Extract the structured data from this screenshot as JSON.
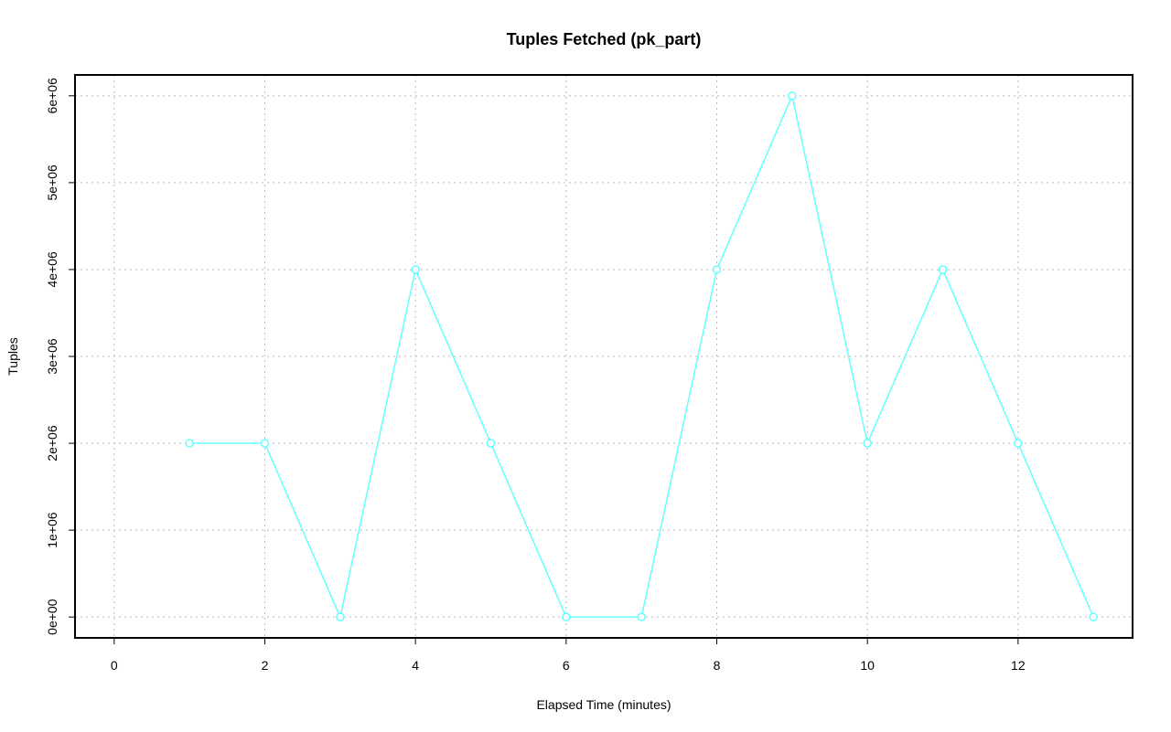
{
  "chart_data": {
    "type": "line",
    "title": "Tuples Fetched (pk_part)",
    "x_label": "Elapsed Time (minutes)",
    "y_label": "Tuples",
    "x": [
      1,
      2,
      3,
      4,
      5,
      6,
      7,
      8,
      9,
      10,
      11,
      12,
      13
    ],
    "series": [
      {
        "name": "pk_part",
        "color": "#66ffff",
        "values": [
          2000000,
          2000000,
          0,
          4000000,
          2000000,
          0,
          0,
          4000000,
          6000000,
          2000000,
          4000000,
          2000000,
          0
        ]
      }
    ],
    "xlim": [
      -0.52,
      13.52
    ],
    "xticks": [
      0,
      2,
      4,
      6,
      8,
      10,
      12
    ],
    "ylim": [
      -240000,
      6240000
    ],
    "yticks": [
      {
        "value": 0,
        "label": "0e+00"
      },
      {
        "value": 1000000,
        "label": "1e+06"
      },
      {
        "value": 2000000,
        "label": "2e+06"
      },
      {
        "value": 3000000,
        "label": "3e+06"
      },
      {
        "value": 4000000,
        "label": "4e+06"
      },
      {
        "value": 5000000,
        "label": "5e+06"
      },
      {
        "value": 6000000,
        "label": "6e+06"
      }
    ],
    "grid": true
  }
}
